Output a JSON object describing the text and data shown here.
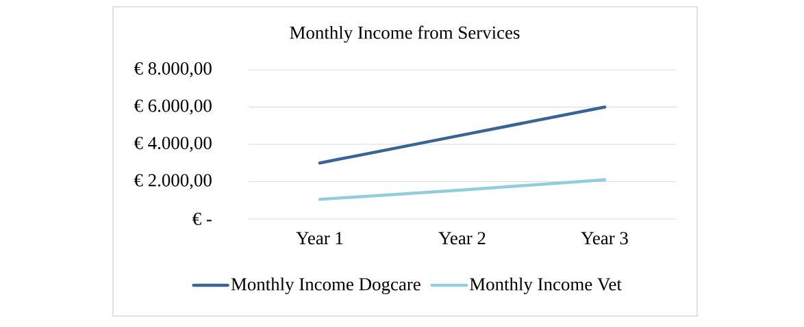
{
  "chart_data": {
    "type": "line",
    "title": "Monthly Income from Services",
    "categories": [
      "Year 1",
      "Year 2",
      "Year 3"
    ],
    "series": [
      {
        "name": "Monthly Income Dogcare",
        "color": "#3a6496",
        "values": [
          3000,
          4500,
          6000
        ]
      },
      {
        "name": "Monthly Income Vet",
        "color": "#92cddc",
        "values": [
          1050,
          1550,
          2100
        ]
      }
    ],
    "ylim": [
      0,
      8000
    ],
    "yticks": [
      {
        "value": 0,
        "label": "€ -"
      },
      {
        "value": 2000,
        "label": "€ 2.000,00"
      },
      {
        "value": 4000,
        "label": "€ 4.000,00"
      },
      {
        "value": 6000,
        "label": "€ 6.000,00"
      },
      {
        "value": 8000,
        "label": "€ 8.000,00"
      }
    ],
    "grid": "y",
    "legend": "bottom",
    "marker": "none",
    "line_style": "solid"
  }
}
